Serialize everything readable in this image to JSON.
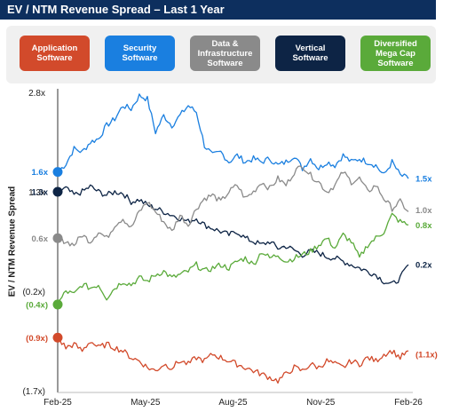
{
  "title": "EV / NTM Revenue Spread – Last 1 Year",
  "legend": [
    {
      "label": "Application\nSoftware",
      "color": "#d24a2b"
    },
    {
      "label": "Security\nSoftware",
      "color": "#1a7fe0"
    },
    {
      "label": "Data &\nInfrastructure\nSoftware",
      "color": "#8a8a8a"
    },
    {
      "label": "Vertical\nSoftware",
      "color": "#0d2445"
    },
    {
      "label": "Diversified\nMega Cap\nSoftware",
      "color": "#5aaa3a"
    }
  ],
  "chart_data": {
    "type": "line",
    "title": "EV / NTM Revenue Spread – Last 1 Year",
    "xlabel": "",
    "ylabel": "EV / NTM Revenue Spread",
    "x_ticks": [
      "Feb-25",
      "May-25",
      "Aug-25",
      "Nov-25",
      "Feb-26"
    ],
    "y_ticks": [
      "2.8x",
      "1.3x",
      "(0.2x)",
      "(1.7x)"
    ],
    "ylim": [
      -1.7,
      2.8
    ],
    "series": [
      {
        "name": "Security Software",
        "color": "#1a7fe0",
        "start_label": "1.6x",
        "end_label": "1.5x",
        "values": [
          1.6,
          1.72,
          1.95,
          1.9,
          2.05,
          2.1,
          2.3,
          2.4,
          2.6,
          2.55,
          2.75,
          2.7,
          2.2,
          2.45,
          2.3,
          2.45,
          2.6,
          2.5,
          2.0,
          1.85,
          1.9,
          1.75,
          1.85,
          1.75,
          1.8,
          1.75,
          1.8,
          1.7,
          1.75,
          1.85,
          1.65,
          1.8,
          1.65,
          1.75,
          1.7,
          1.85,
          1.75,
          1.8,
          1.75,
          1.7,
          1.55,
          1.75,
          1.55,
          1.5
        ]
      },
      {
        "name": "Vertical Software",
        "color": "#0d2445",
        "start_label": "1.3x",
        "end_label": "0.2x",
        "values": [
          1.3,
          1.35,
          1.25,
          1.3,
          1.38,
          1.3,
          1.25,
          1.3,
          1.28,
          1.15,
          1.18,
          1.1,
          1.05,
          1.0,
          0.95,
          0.9,
          0.85,
          0.9,
          0.8,
          0.75,
          0.7,
          0.65,
          0.7,
          0.6,
          0.55,
          0.5,
          0.55,
          0.45,
          0.48,
          0.42,
          0.35,
          0.4,
          0.38,
          0.32,
          0.3,
          0.25,
          0.2,
          0.15,
          0.1,
          0.05,
          -0.05,
          -0.1,
          0.0,
          0.2
        ]
      },
      {
        "name": "Data & Infrastructure Software",
        "color": "#8a8a8a",
        "start_label": "0.6x",
        "end_label": "1.0x",
        "values": [
          0.6,
          0.55,
          0.5,
          0.65,
          0.55,
          0.7,
          0.6,
          0.8,
          0.9,
          0.75,
          1.0,
          1.15,
          1.0,
          0.85,
          0.7,
          0.95,
          0.8,
          1.05,
          1.2,
          1.25,
          1.15,
          1.3,
          1.4,
          1.2,
          1.3,
          1.45,
          1.35,
          1.5,
          1.4,
          1.6,
          1.7,
          1.55,
          1.45,
          1.3,
          1.4,
          1.6,
          1.45,
          1.5,
          1.3,
          1.4,
          1.2,
          1.05,
          1.15,
          1.0
        ]
      },
      {
        "name": "Diversified Mega Cap Software",
        "color": "#5aaa3a",
        "start_label": "(0.4x)",
        "end_label": "0.8x",
        "values": [
          -0.4,
          -0.2,
          -0.25,
          -0.1,
          -0.15,
          -0.1,
          -0.3,
          -0.15,
          -0.05,
          -0.1,
          0.0,
          -0.05,
          0.05,
          0.1,
          0.0,
          0.05,
          0.1,
          0.2,
          0.1,
          0.15,
          0.2,
          0.15,
          0.25,
          0.3,
          0.2,
          0.4,
          0.3,
          0.35,
          0.25,
          0.3,
          0.35,
          0.4,
          0.5,
          0.6,
          0.45,
          0.65,
          0.55,
          0.3,
          0.5,
          0.6,
          0.7,
          0.95,
          0.85,
          0.8
        ]
      },
      {
        "name": "Application Software",
        "color": "#d24a2b",
        "start_label": "(0.9x)",
        "end_label": "(1.1x)",
        "values": [
          -0.9,
          -1.05,
          -1.0,
          -1.1,
          -0.95,
          -1.05,
          -1.0,
          -1.05,
          -1.1,
          -1.2,
          -1.25,
          -1.35,
          -1.4,
          -1.3,
          -1.35,
          -1.25,
          -1.3,
          -1.2,
          -1.25,
          -1.15,
          -1.2,
          -1.25,
          -1.3,
          -1.35,
          -1.4,
          -1.45,
          -1.5,
          -1.55,
          -1.45,
          -1.35,
          -1.4,
          -1.3,
          -1.35,
          -1.25,
          -1.3,
          -1.35,
          -1.25,
          -1.3,
          -1.2,
          -1.25,
          -1.15,
          -1.1,
          -1.2,
          -1.1
        ]
      }
    ]
  }
}
